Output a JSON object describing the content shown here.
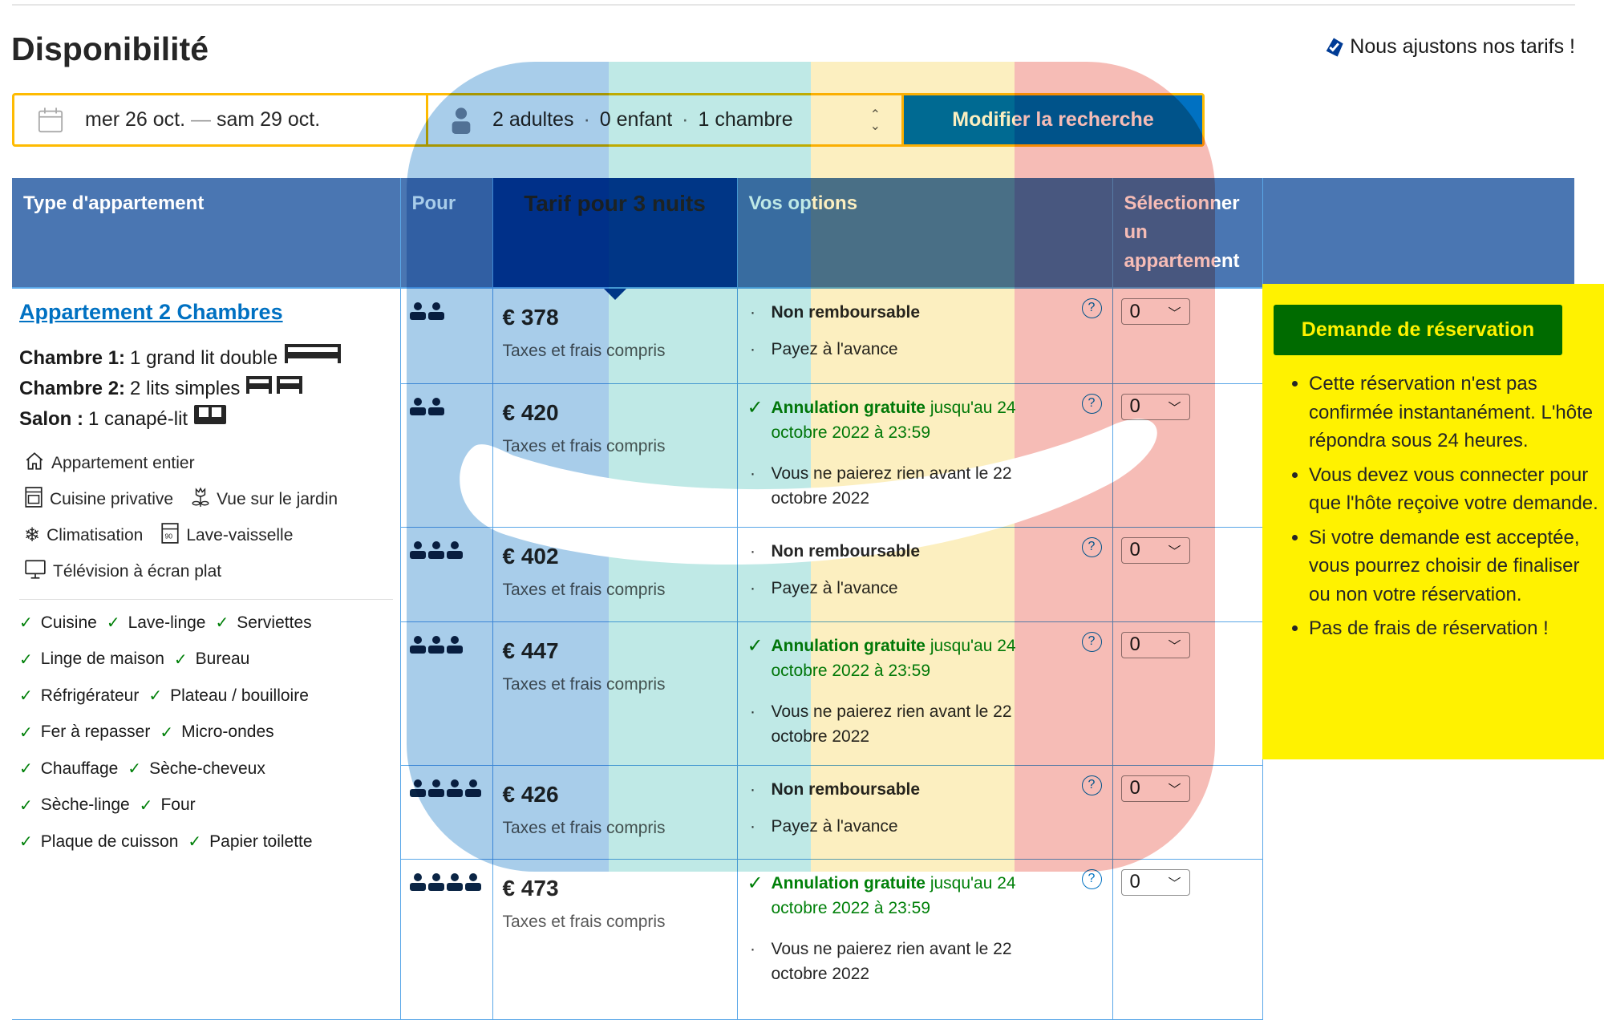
{
  "page": {
    "title": "Disponibilité",
    "price_notice": "Nous ajustons nos tarifs !",
    "price_notice_icon": "tag-check-icon"
  },
  "search": {
    "dates": {
      "start": "mer 26 oct.",
      "separator": "—",
      "end": "sam 29 oct."
    },
    "guests": {
      "adults": "2 adultes",
      "children": "0 enfant",
      "rooms": "1 chambre"
    },
    "button": "Modifier la recherche"
  },
  "table": {
    "headers": [
      "Type d'appartement",
      "Pour",
      "Tarif pour 3 nuits",
      "Vos options",
      "Sélectionner un appartement"
    ],
    "room": {
      "name": "Appartement 2 Chambres",
      "beds": [
        {
          "label": "Chambre 1:",
          "value": "1 grand lit double",
          "icon": "double-bed-icon"
        },
        {
          "label": "Chambre 2:",
          "value": "2 lits simples",
          "icon": "single-beds-icon"
        },
        {
          "label": "Salon :",
          "value": "1 canapé-lit",
          "icon": "sofa-bed-icon"
        }
      ],
      "facilities": [
        {
          "label": "Appartement entier",
          "icon": "house-icon"
        },
        {
          "label": "Cuisine privative",
          "icon": "kitchen-icon"
        },
        {
          "label": "Vue sur le jardin",
          "icon": "flower-icon"
        },
        {
          "label": "Climatisation",
          "icon": "snowflake-icon"
        },
        {
          "label": "Lave-vaisselle",
          "icon": "dishwasher-icon"
        },
        {
          "label": "Télévision à écran plat",
          "icon": "tv-icon"
        }
      ],
      "amenities": [
        "Cuisine",
        "Lave-linge",
        "Serviettes",
        "Linge de maison",
        "Bureau",
        "Réfrigérateur",
        "Plateau / bouilloire",
        "Fer à repasser",
        "Micro-ondes",
        "Chauffage",
        "Sèche-cheveux",
        "Sèche-linge",
        "Four",
        "Plaque de cuisson",
        "Papier toilette"
      ]
    },
    "tax_label": "Taxes et frais compris",
    "rows": [
      {
        "persons": 2,
        "price": "€ 378",
        "type": "nonref",
        "select": "0"
      },
      {
        "persons": 2,
        "price": "€ 420",
        "type": "free",
        "select": "0"
      },
      {
        "persons": 3,
        "price": "€ 402",
        "type": "nonref",
        "select": "0"
      },
      {
        "persons": 3,
        "price": "€ 447",
        "type": "free",
        "select": "0"
      },
      {
        "persons": 4,
        "price": "€ 426",
        "type": "nonref",
        "select": "0"
      },
      {
        "persons": 4,
        "price": "€ 473",
        "type": "free",
        "select": "0"
      }
    ],
    "options": {
      "nonref": {
        "line1": "Non remboursable",
        "line2": "Payez à l'avance"
      },
      "free": {
        "bold": "Annulation gratuite",
        "rest": " jusqu'au 24 octobre 2022 à 23:59",
        "line2": "Vous ne paierez rien avant le 22 octobre 2022"
      }
    }
  },
  "reservation_panel": {
    "button": "Demande de réservation",
    "bullets": [
      "Cette réservation n'est pas confirmée instantanément. L'hôte répondra sous 24 heures.",
      "Vous devez vous connecter pour que l'hôte reçoive votre demande.",
      "Si votre demande est acceptée, vous pourrez choisir de finaliser ou non votre réservation.",
      "Pas de frais de réservation !"
    ]
  },
  "colors": {
    "header": "#4a76b2",
    "price_header": "#003b95",
    "link": "#0071c2",
    "panel": "#fff200",
    "reserve_button": "#006b00",
    "search_border": "#febb02",
    "green": "#008009",
    "logo_stripes": [
      "#a8cdea",
      "#bfe9e6",
      "#fcefc0",
      "#f6bcb6"
    ]
  }
}
